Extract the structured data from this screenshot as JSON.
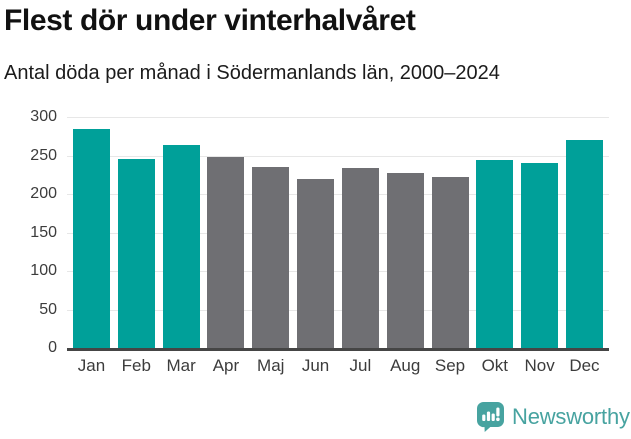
{
  "header": {
    "title": "Flest dör under vinterhalvåret",
    "subtitle": "Antal döda per månad i Södermanlands län, 2000–2024"
  },
  "chart_data": {
    "type": "bar",
    "categories": [
      "Jan",
      "Feb",
      "Mar",
      "Apr",
      "Maj",
      "Jun",
      "Jul",
      "Aug",
      "Sep",
      "Okt",
      "Nov",
      "Dec"
    ],
    "values": [
      285,
      246,
      264,
      248,
      235,
      219,
      234,
      227,
      222,
      244,
      240,
      270
    ],
    "highlighted": [
      true,
      true,
      true,
      false,
      false,
      false,
      false,
      false,
      false,
      true,
      true,
      true
    ],
    "title": "Flest dör under vinterhalvåret",
    "subtitle": "Antal döda per månad i Södermanlands län, 2000–2024",
    "xlabel": "",
    "ylabel": "",
    "ylim": [
      0,
      300
    ],
    "yticks": [
      0,
      50,
      100,
      150,
      200,
      250,
      300
    ],
    "grid": true,
    "legend": "none",
    "colors": {
      "highlight": "#00a099",
      "default": "#6f6f73",
      "gridline": "#e7e7e7",
      "axis_line": "#454545",
      "tick_label": "#3c3c3c"
    }
  },
  "footer": {
    "brand": "Newsworthy",
    "brand_color": "#47a3a0",
    "logo_icon": "bar-chart-speech-bubble"
  }
}
